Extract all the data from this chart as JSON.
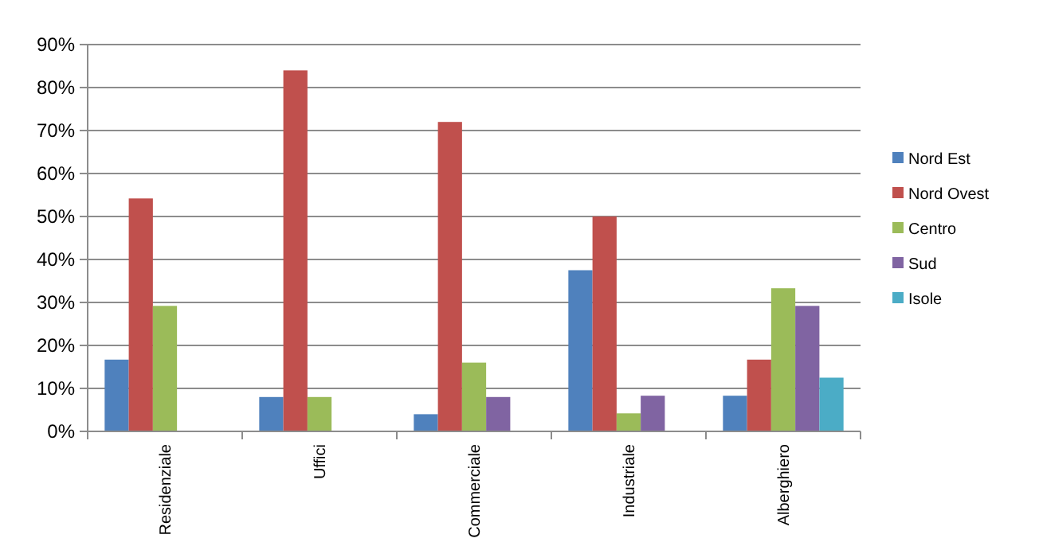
{
  "chart_data": {
    "type": "bar",
    "categories": [
      "Residenziale",
      "Uffici",
      "Commerciale",
      "Industriale",
      "Alberghiero"
    ],
    "series": [
      {
        "name": "Nord Est",
        "color": "#4f81bd",
        "values": [
          16.7,
          8,
          4,
          37.5,
          8.3
        ]
      },
      {
        "name": "Nord Ovest",
        "color": "#c0504d",
        "values": [
          54.2,
          84,
          72,
          50,
          16.7
        ]
      },
      {
        "name": "Centro",
        "color": "#9bbb59",
        "values": [
          29.2,
          8,
          16,
          4.2,
          33.3
        ]
      },
      {
        "name": "Sud",
        "color": "#8064a2",
        "values": [
          0,
          0,
          8,
          8.3,
          29.2
        ]
      },
      {
        "name": "Isole",
        "color": "#4bacc6",
        "values": [
          0,
          0,
          0,
          0,
          12.5
        ]
      }
    ],
    "ylim": [
      0,
      90
    ],
    "yticks": [
      {
        "value": 0,
        "label": "0%"
      },
      {
        "value": 10,
        "label": "10%"
      },
      {
        "value": 20,
        "label": "20%"
      },
      {
        "value": 30,
        "label": "30%"
      },
      {
        "value": 40,
        "label": "40%"
      },
      {
        "value": 50,
        "label": "50%"
      },
      {
        "value": 60,
        "label": "60%"
      },
      {
        "value": 70,
        "label": "70%"
      },
      {
        "value": 80,
        "label": "80%"
      },
      {
        "value": 90,
        "label": "90%"
      }
    ],
    "grid": "y",
    "legend": "right"
  }
}
